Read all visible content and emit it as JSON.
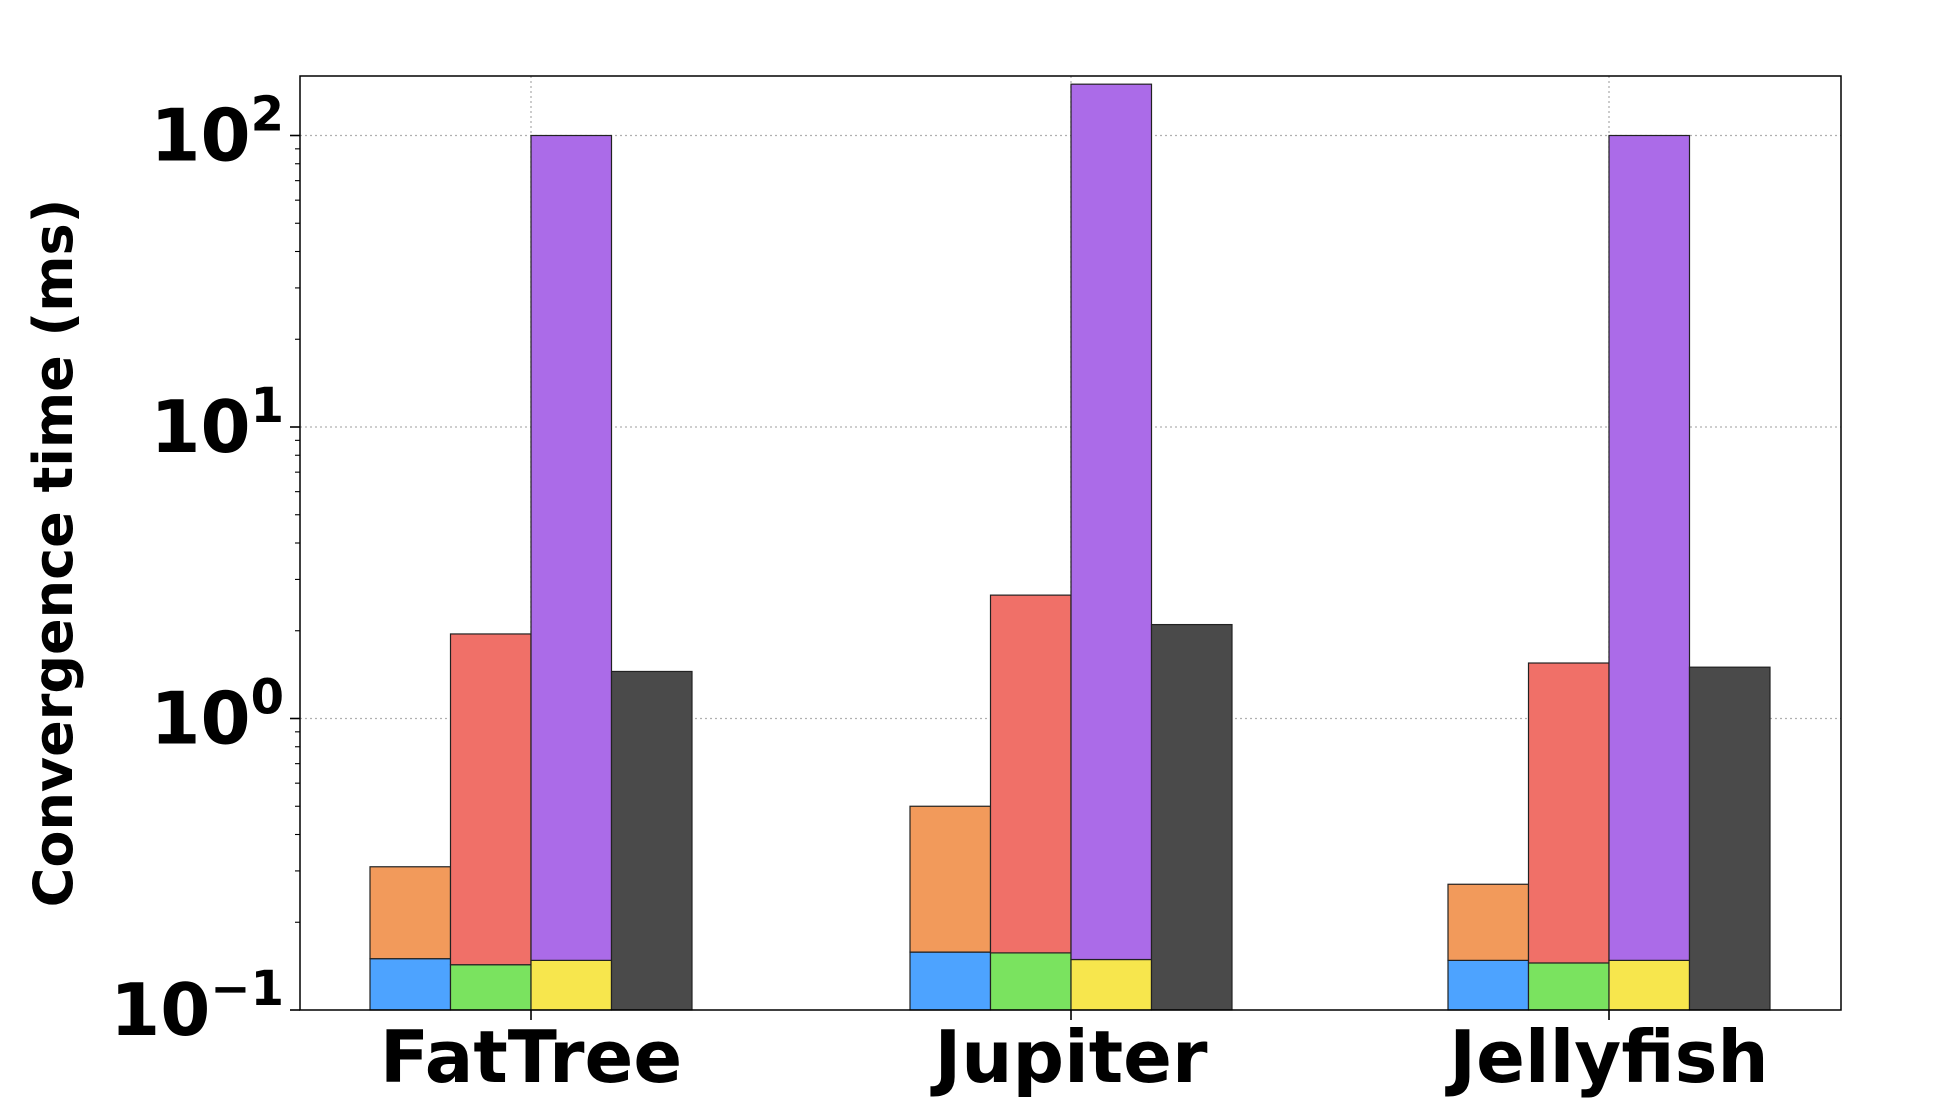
{
  "chart_data": {
    "type": "bar",
    "subtype": "stacked-grouped",
    "title": "",
    "xlabel": "",
    "ylabel": "Convergence time (ms)",
    "yscale": "log",
    "ylim": [
      0.1,
      160
    ],
    "yticks": [
      {
        "value": 0.1,
        "base": "10",
        "exp": "−1"
      },
      {
        "value": 1,
        "base": "10",
        "exp": "0"
      },
      {
        "value": 10,
        "base": "10",
        "exp": "1"
      },
      {
        "value": 100,
        "base": "10",
        "exp": "2"
      }
    ],
    "grid": true,
    "legend": "none",
    "categories": [
      "FatTree",
      "Jupiter",
      "Jellyfish"
    ],
    "colors": {
      "blue": "#4da3ff",
      "orange": "#f29a5b",
      "green": "#7ae35f",
      "red": "#f07068",
      "yellow": "#f7e64d",
      "purple": "#ab6be8",
      "dark": "#4a4a4a"
    },
    "groups": [
      {
        "category": "FatTree",
        "bars": [
          {
            "segments": [
              {
                "color": "blue",
                "value": 0.15
              },
              {
                "color": "orange",
                "value": 0.31
              }
            ]
          },
          {
            "segments": [
              {
                "color": "green",
                "value": 0.143
              },
              {
                "color": "red",
                "value": 1.95
              }
            ]
          },
          {
            "segments": [
              {
                "color": "yellow",
                "value": 0.148
              },
              {
                "color": "purple",
                "value": 100
              }
            ]
          },
          {
            "segments": [
              {
                "color": "dark",
                "value": 1.45
              }
            ]
          }
        ]
      },
      {
        "category": "Jupiter",
        "bars": [
          {
            "segments": [
              {
                "color": "blue",
                "value": 0.158
              },
              {
                "color": "orange",
                "value": 0.5
              }
            ]
          },
          {
            "segments": [
              {
                "color": "green",
                "value": 0.157
              },
              {
                "color": "red",
                "value": 2.65
              }
            ]
          },
          {
            "segments": [
              {
                "color": "yellow",
                "value": 0.149
              },
              {
                "color": "purple",
                "value": 150
              }
            ]
          },
          {
            "segments": [
              {
                "color": "dark",
                "value": 2.1
              }
            ]
          }
        ]
      },
      {
        "category": "Jellyfish",
        "bars": [
          {
            "segments": [
              {
                "color": "blue",
                "value": 0.148
              },
              {
                "color": "orange",
                "value": 0.27
              }
            ]
          },
          {
            "segments": [
              {
                "color": "green",
                "value": 0.145
              },
              {
                "color": "red",
                "value": 1.55
              }
            ]
          },
          {
            "segments": [
              {
                "color": "yellow",
                "value": 0.148
              },
              {
                "color": "purple",
                "value": 100
              }
            ]
          },
          {
            "segments": [
              {
                "color": "dark",
                "value": 1.5
              }
            ]
          }
        ]
      }
    ]
  }
}
